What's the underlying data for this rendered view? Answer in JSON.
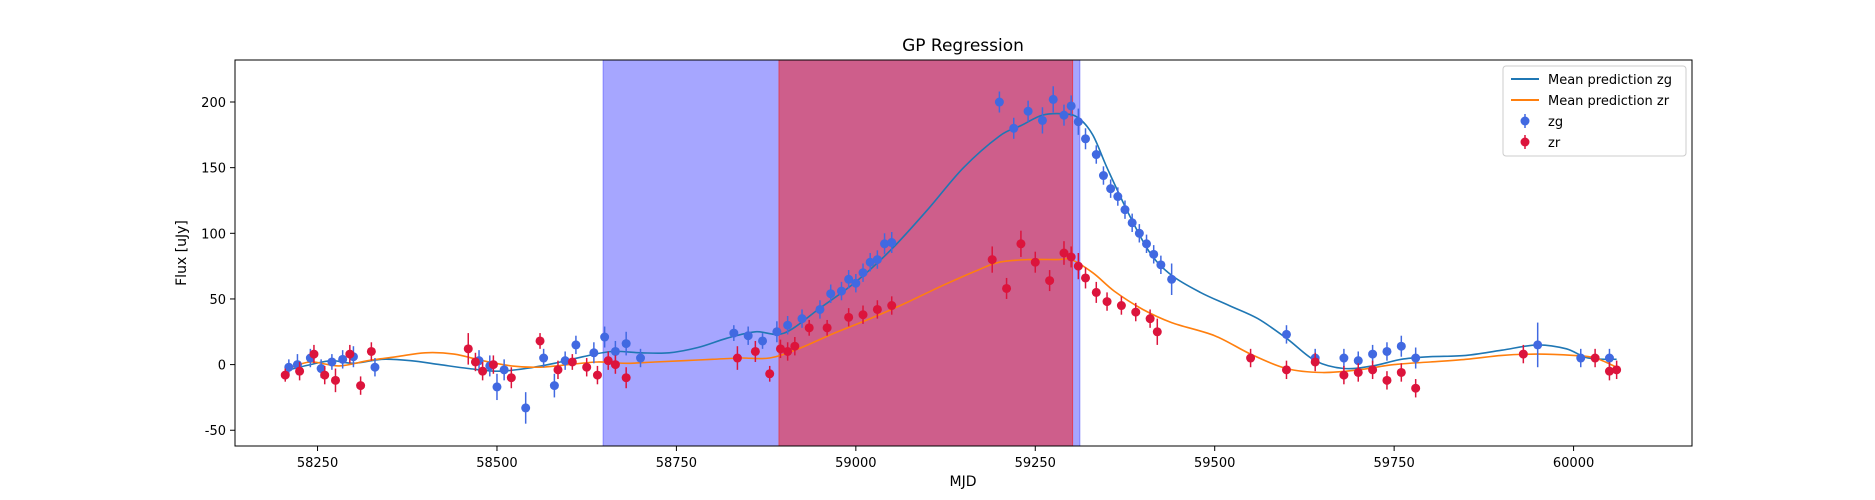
{
  "chart_data": {
    "type": "scatter",
    "title": "GP Regression",
    "xlabel": "MJD",
    "ylabel": "Flux [uJy]",
    "xlim": [
      58135,
      60165
    ],
    "ylim": [
      -62,
      232
    ],
    "xticks": [
      58250,
      58500,
      58750,
      59000,
      59250,
      59500,
      59750,
      60000
    ],
    "yticks": [
      -50,
      0,
      50,
      100,
      150,
      200
    ],
    "grid": false,
    "legend_position": "top-right",
    "colors": {
      "zg": "#4169e1",
      "zr": "#dc143c",
      "mean_zg": "#1f77b4",
      "mean_zr": "#ff7f0e",
      "band_blue": "#8080ff",
      "band_red": "#e0405a"
    },
    "shaded_regions": [
      {
        "x0": 58648,
        "x1": 59312,
        "color": "band_blue"
      },
      {
        "x0": 58893,
        "x1": 59302,
        "color": "band_red"
      }
    ],
    "series": [
      {
        "name": "Mean prediction zg",
        "kind": "line",
        "color": "mean_zg",
        "x": [
          58210,
          58240,
          58270,
          58300,
          58340,
          58380,
          58420,
          58460,
          58500,
          58540,
          58580,
          58620,
          58660,
          58700,
          58740,
          58780,
          58820,
          58860,
          58900,
          58950,
          59000,
          59050,
          59100,
          59150,
          59200,
          59230,
          59260,
          59290,
          59310,
          59330,
          59350,
          59380,
          59410,
          59440,
          59480,
          59520,
          59560,
          59600,
          59640,
          59680,
          59720,
          59760,
          59800,
          59850,
          59900,
          59950,
          59990,
          60020,
          60060
        ],
        "y": [
          -4,
          0,
          3,
          1,
          4,
          3,
          0,
          -3,
          -5,
          -3,
          1,
          6,
          10,
          9,
          9,
          13,
          20,
          25,
          24,
          43,
          63,
          88,
          118,
          150,
          174,
          182,
          190,
          191,
          188,
          175,
          150,
          115,
          85,
          68,
          55,
          45,
          35,
          20,
          3,
          -3,
          -1,
          4,
          6,
          7,
          11,
          15,
          12,
          5,
          4
        ]
      },
      {
        "name": "Mean prediction zr",
        "kind": "line",
        "color": "mean_zr",
        "x": [
          58210,
          58240,
          58280,
          58320,
          58360,
          58400,
          58440,
          58480,
          58520,
          58560,
          58600,
          58640,
          58680,
          58720,
          58760,
          58800,
          58840,
          58880,
          58920,
          58970,
          59020,
          59070,
          59120,
          59170,
          59200,
          59240,
          59280,
          59300,
          59330,
          59360,
          59400,
          59440,
          59500,
          59550,
          59600,
          59650,
          59700,
          59750,
          59800,
          59850,
          59900,
          59950,
          60000,
          60030,
          60060
        ],
        "y": [
          -3,
          2,
          -1,
          3,
          6,
          9,
          8,
          3,
          -1,
          -2,
          0,
          2,
          1,
          2,
          3,
          4,
          5,
          5,
          12,
          24,
          35,
          47,
          60,
          72,
          78,
          80,
          80,
          80,
          70,
          56,
          42,
          32,
          22,
          8,
          -3,
          -6,
          -4,
          0,
          2,
          4,
          7,
          8,
          7,
          5,
          -2
        ]
      },
      {
        "name": "zg",
        "kind": "errorbar",
        "color": "zg",
        "x": [
          58210,
          58222,
          58240,
          58255,
          58270,
          58285,
          58300,
          58330,
          58475,
          58490,
          58500,
          58510,
          58540,
          58565,
          58580,
          58595,
          58610,
          58635,
          58650,
          58665,
          58680,
          58700,
          58830,
          58850,
          58870,
          58890,
          58905,
          58925,
          58950,
          58965,
          58980,
          58990,
          59000,
          59010,
          59020,
          59030,
          59040,
          59050,
          59200,
          59220,
          59240,
          59260,
          59275,
          59290,
          59300,
          59310,
          59320,
          59335,
          59345,
          59355,
          59365,
          59375,
          59385,
          59395,
          59405,
          59415,
          59425,
          59440,
          59600,
          59640,
          59680,
          59700,
          59720,
          59740,
          59760,
          59780,
          59950,
          60010,
          60050
        ],
        "y": [
          -2,
          0,
          5,
          -3,
          2,
          4,
          6,
          -2,
          3,
          -1,
          -17,
          -4,
          -33,
          5,
          -16,
          3,
          15,
          9,
          21,
          10,
          16,
          5,
          24,
          22,
          18,
          25,
          30,
          35,
          42,
          54,
          56,
          65,
          62,
          70,
          78,
          80,
          92,
          93,
          200,
          180,
          193,
          186,
          202,
          190,
          197,
          185,
          172,
          160,
          144,
          134,
          128,
          118,
          108,
          100,
          92,
          84,
          76,
          65,
          23,
          5,
          5,
          3,
          8,
          10,
          14,
          5,
          15,
          5,
          5
        ],
        "err": [
          6,
          8,
          7,
          7,
          6,
          7,
          8,
          7,
          8,
          8,
          10,
          8,
          12,
          7,
          9,
          7,
          7,
          8,
          8,
          8,
          9,
          7,
          6,
          7,
          6,
          8,
          7,
          7,
          7,
          7,
          7,
          7,
          7,
          7,
          7,
          7,
          8,
          8,
          8,
          8,
          8,
          10,
          10,
          8,
          8,
          10,
          8,
          7,
          7,
          7,
          7,
          7,
          7,
          7,
          7,
          7,
          7,
          12,
          7,
          7,
          7,
          7,
          7,
          7,
          8,
          8,
          17,
          7,
          7
        ]
      },
      {
        "name": "zr",
        "kind": "errorbar",
        "color": "zr",
        "x": [
          58205,
          58225,
          58245,
          58260,
          58275,
          58295,
          58310,
          58325,
          58460,
          58470,
          58480,
          58495,
          58520,
          58560,
          58585,
          58605,
          58625,
          58640,
          58655,
          58665,
          58680,
          58835,
          58860,
          58880,
          58895,
          58905,
          58915,
          58935,
          58960,
          58990,
          59010,
          59030,
          59050,
          59190,
          59210,
          59230,
          59250,
          59270,
          59290,
          59300,
          59310,
          59320,
          59335,
          59350,
          59370,
          59390,
          59410,
          59420,
          59550,
          59600,
          59640,
          59680,
          59700,
          59720,
          59740,
          59760,
          59780,
          59930,
          60030,
          60050,
          60060
        ],
        "y": [
          -8,
          -5,
          8,
          -8,
          -12,
          8,
          -16,
          10,
          12,
          2,
          -5,
          0,
          -10,
          18,
          -4,
          2,
          -2,
          -8,
          3,
          0,
          -10,
          5,
          10,
          -7,
          12,
          10,
          14,
          28,
          28,
          36,
          38,
          42,
          45,
          80,
          58,
          92,
          78,
          64,
          85,
          82,
          75,
          66,
          55,
          48,
          45,
          40,
          35,
          25,
          5,
          -4,
          2,
          -8,
          -6,
          -4,
          -12,
          -6,
          -18,
          8,
          5,
          -5,
          -4
        ],
        "err": [
          5,
          7,
          7,
          7,
          9,
          7,
          7,
          7,
          12,
          7,
          7,
          7,
          8,
          6,
          7,
          6,
          7,
          7,
          7,
          7,
          8,
          9,
          8,
          6,
          7,
          7,
          7,
          6,
          6,
          7,
          7,
          7,
          7,
          10,
          8,
          10,
          8,
          8,
          9,
          8,
          10,
          8,
          8,
          7,
          7,
          7,
          7,
          10,
          7,
          7,
          7,
          7,
          7,
          7,
          7,
          7,
          7,
          7,
          7,
          7,
          7
        ]
      }
    ],
    "legend": [
      {
        "label": "Mean prediction zg",
        "marker": "line",
        "color": "mean_zg"
      },
      {
        "label": "Mean prediction zr",
        "marker": "line",
        "color": "mean_zr"
      },
      {
        "label": "zg",
        "marker": "errorbar",
        "color": "zg"
      },
      {
        "label": "zr",
        "marker": "errorbar",
        "color": "zr"
      }
    ]
  }
}
